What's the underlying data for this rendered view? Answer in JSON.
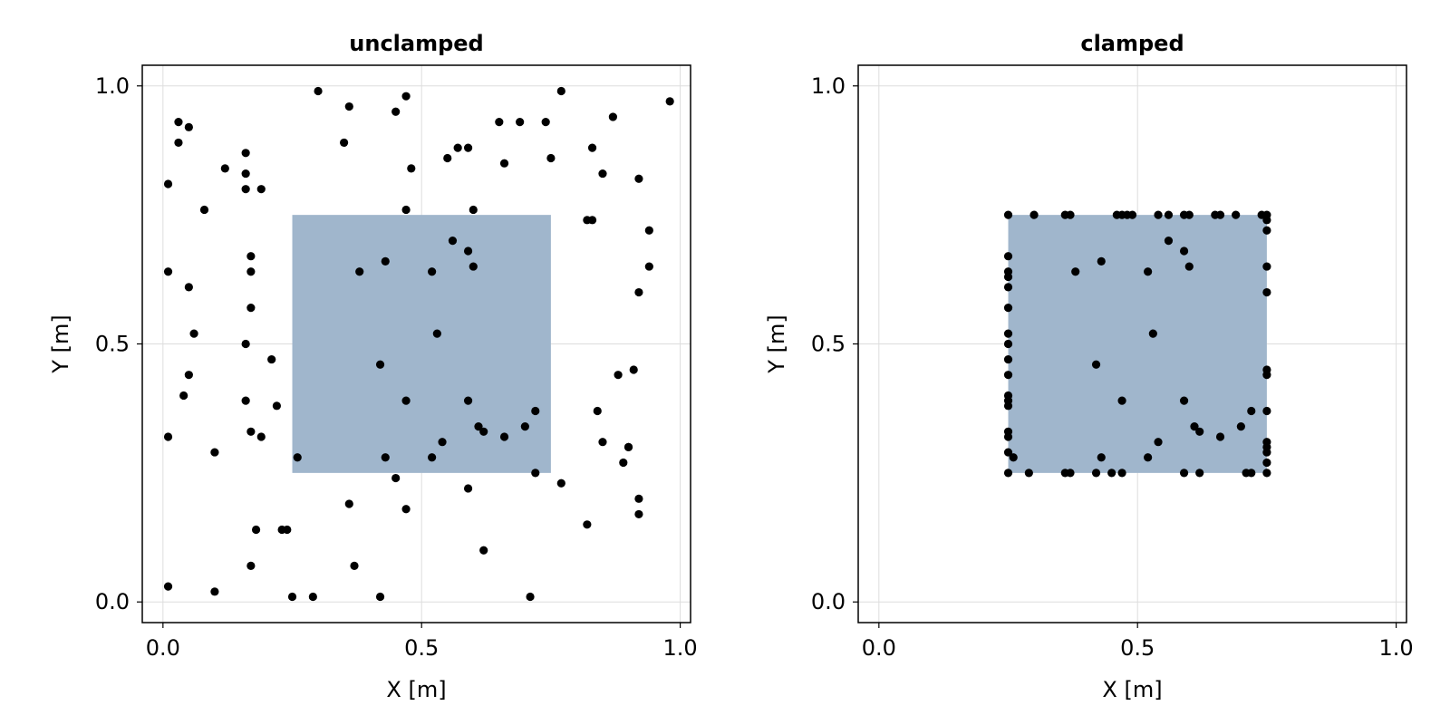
{
  "chart_data": [
    {
      "type": "scatter",
      "title": "unclamped",
      "xlabel": "X [m]",
      "ylabel": "Y [m]",
      "xlim": [
        -0.04,
        1.02
      ],
      "ylim": [
        -0.04,
        1.04
      ],
      "xticks": [
        "0.0",
        "0.5",
        "1.0"
      ],
      "yticks": [
        "0.0",
        "0.5",
        "1.0"
      ],
      "grid": true,
      "region": {
        "x": [
          0.25,
          0.75
        ],
        "y": [
          0.25,
          0.75
        ],
        "color": "#a0b6cc"
      },
      "marker_color": "#000000",
      "points": [
        [
          0.03,
          0.93
        ],
        [
          0.05,
          0.92
        ],
        [
          0.03,
          0.89
        ],
        [
          0.01,
          0.81
        ],
        [
          0.08,
          0.76
        ],
        [
          0.12,
          0.84
        ],
        [
          0.16,
          0.87
        ],
        [
          0.16,
          0.83
        ],
        [
          0.16,
          0.8
        ],
        [
          0.19,
          0.8
        ],
        [
          0.17,
          0.67
        ],
        [
          0.17,
          0.64
        ],
        [
          0.17,
          0.57
        ],
        [
          0.01,
          0.64
        ],
        [
          0.05,
          0.61
        ],
        [
          0.06,
          0.52
        ],
        [
          0.16,
          0.5
        ],
        [
          0.05,
          0.44
        ],
        [
          0.04,
          0.4
        ],
        [
          0.16,
          0.39
        ],
        [
          0.17,
          0.33
        ],
        [
          0.01,
          0.32
        ],
        [
          0.19,
          0.32
        ],
        [
          0.1,
          0.29
        ],
        [
          0.21,
          0.47
        ],
        [
          0.22,
          0.38
        ],
        [
          0.01,
          0.03
        ],
        [
          0.1,
          0.02
        ],
        [
          0.17,
          0.07
        ],
        [
          0.18,
          0.14
        ],
        [
          0.23,
          0.14
        ],
        [
          0.24,
          0.14
        ],
        [
          0.25,
          0.01
        ],
        [
          0.29,
          0.01
        ],
        [
          0.3,
          0.99
        ],
        [
          0.35,
          0.89
        ],
        [
          0.36,
          0.96
        ],
        [
          0.36,
          0.19
        ],
        [
          0.37,
          0.07
        ],
        [
          0.42,
          0.01
        ],
        [
          0.45,
          0.95
        ],
        [
          0.47,
          0.98
        ],
        [
          0.48,
          0.84
        ],
        [
          0.47,
          0.76
        ],
        [
          0.38,
          0.64
        ],
        [
          0.43,
          0.66
        ],
        [
          0.42,
          0.46
        ],
        [
          0.47,
          0.39
        ],
        [
          0.43,
          0.28
        ],
        [
          0.45,
          0.24
        ],
        [
          0.47,
          0.18
        ],
        [
          0.26,
          0.28
        ],
        [
          0.52,
          0.64
        ],
        [
          0.53,
          0.52
        ],
        [
          0.55,
          0.86
        ],
        [
          0.57,
          0.88
        ],
        [
          0.59,
          0.88
        ],
        [
          0.6,
          0.76
        ],
        [
          0.56,
          0.7
        ],
        [
          0.59,
          0.68
        ],
        [
          0.6,
          0.65
        ],
        [
          0.52,
          0.28
        ],
        [
          0.54,
          0.31
        ],
        [
          0.59,
          0.39
        ],
        [
          0.61,
          0.34
        ],
        [
          0.62,
          0.33
        ],
        [
          0.59,
          0.22
        ],
        [
          0.62,
          0.1
        ],
        [
          0.65,
          0.93
        ],
        [
          0.66,
          0.85
        ],
        [
          0.69,
          0.93
        ],
        [
          0.66,
          0.32
        ],
        [
          0.7,
          0.34
        ],
        [
          0.72,
          0.37
        ],
        [
          0.72,
          0.25
        ],
        [
          0.71,
          0.01
        ],
        [
          0.74,
          0.93
        ],
        [
          0.75,
          0.86
        ],
        [
          0.77,
          0.99
        ],
        [
          0.77,
          0.23
        ],
        [
          0.83,
          0.88
        ],
        [
          0.85,
          0.83
        ],
        [
          0.87,
          0.94
        ],
        [
          0.82,
          0.74
        ],
        [
          0.83,
          0.74
        ],
        [
          0.84,
          0.37
        ],
        [
          0.85,
          0.31
        ],
        [
          0.88,
          0.44
        ],
        [
          0.9,
          0.3
        ],
        [
          0.9,
          0.3
        ],
        [
          0.89,
          0.27
        ],
        [
          0.91,
          0.45
        ],
        [
          0.92,
          0.82
        ],
        [
          0.92,
          0.6
        ],
        [
          0.94,
          0.72
        ],
        [
          0.94,
          0.65
        ],
        [
          0.92,
          0.2
        ],
        [
          0.92,
          0.17
        ],
        [
          0.98,
          0.97
        ],
        [
          0.82,
          0.15
        ]
      ]
    },
    {
      "type": "scatter",
      "title": "clamped",
      "xlabel": "X [m]",
      "ylabel": "Y [m]",
      "xlim": [
        -0.04,
        1.02
      ],
      "ylim": [
        -0.04,
        1.04
      ],
      "xticks": [
        "0.0",
        "0.5",
        "1.0"
      ],
      "yticks": [
        "0.0",
        "0.5",
        "1.0"
      ],
      "grid": true,
      "region": {
        "x": [
          0.25,
          0.75
        ],
        "y": [
          0.25,
          0.75
        ],
        "color": "#a0b6cc"
      },
      "marker_color": "#000000",
      "points": [
        [
          0.25,
          0.75
        ],
        [
          0.3,
          0.75
        ],
        [
          0.36,
          0.75
        ],
        [
          0.37,
          0.75
        ],
        [
          0.46,
          0.75
        ],
        [
          0.47,
          0.75
        ],
        [
          0.48,
          0.75
        ],
        [
          0.49,
          0.75
        ],
        [
          0.54,
          0.75
        ],
        [
          0.56,
          0.75
        ],
        [
          0.59,
          0.75
        ],
        [
          0.6,
          0.75
        ],
        [
          0.65,
          0.75
        ],
        [
          0.66,
          0.75
        ],
        [
          0.69,
          0.75
        ],
        [
          0.74,
          0.75
        ],
        [
          0.75,
          0.75
        ],
        [
          0.75,
          0.74
        ],
        [
          0.75,
          0.72
        ],
        [
          0.75,
          0.65
        ],
        [
          0.75,
          0.6
        ],
        [
          0.25,
          0.67
        ],
        [
          0.25,
          0.64
        ],
        [
          0.25,
          0.63
        ],
        [
          0.25,
          0.61
        ],
        [
          0.25,
          0.57
        ],
        [
          0.25,
          0.52
        ],
        [
          0.25,
          0.5
        ],
        [
          0.25,
          0.47
        ],
        [
          0.25,
          0.44
        ],
        [
          0.25,
          0.4
        ],
        [
          0.25,
          0.39
        ],
        [
          0.25,
          0.38
        ],
        [
          0.25,
          0.33
        ],
        [
          0.25,
          0.32
        ],
        [
          0.25,
          0.29
        ],
        [
          0.26,
          0.28
        ],
        [
          0.25,
          0.25
        ],
        [
          0.29,
          0.25
        ],
        [
          0.36,
          0.25
        ],
        [
          0.37,
          0.25
        ],
        [
          0.42,
          0.25
        ],
        [
          0.45,
          0.25
        ],
        [
          0.47,
          0.25
        ],
        [
          0.59,
          0.25
        ],
        [
          0.62,
          0.25
        ],
        [
          0.71,
          0.25
        ],
        [
          0.72,
          0.25
        ],
        [
          0.75,
          0.25
        ],
        [
          0.75,
          0.27
        ],
        [
          0.75,
          0.29
        ],
        [
          0.75,
          0.3
        ],
        [
          0.75,
          0.31
        ],
        [
          0.75,
          0.37
        ],
        [
          0.75,
          0.44
        ],
        [
          0.75,
          0.45
        ],
        [
          0.38,
          0.64
        ],
        [
          0.43,
          0.66
        ],
        [
          0.52,
          0.64
        ],
        [
          0.53,
          0.52
        ],
        [
          0.56,
          0.7
        ],
        [
          0.59,
          0.68
        ],
        [
          0.6,
          0.65
        ],
        [
          0.42,
          0.46
        ],
        [
          0.47,
          0.39
        ],
        [
          0.43,
          0.28
        ],
        [
          0.52,
          0.28
        ],
        [
          0.54,
          0.31
        ],
        [
          0.59,
          0.39
        ],
        [
          0.61,
          0.34
        ],
        [
          0.62,
          0.33
        ],
        [
          0.66,
          0.32
        ],
        [
          0.7,
          0.34
        ],
        [
          0.72,
          0.37
        ]
      ]
    }
  ]
}
